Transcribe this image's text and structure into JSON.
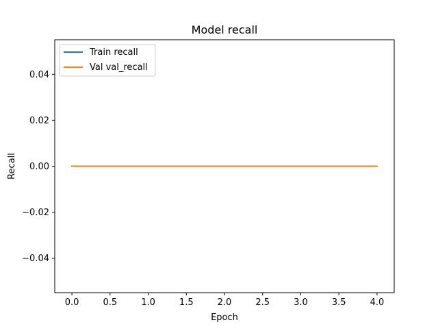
{
  "chart_data": {
    "type": "line",
    "title": "Model recall",
    "xlabel": "Epoch",
    "ylabel": "Recall",
    "xlim": [
      -0.225,
      4.225
    ],
    "ylim": [
      -0.055,
      0.055
    ],
    "x_ticks": [
      0.0,
      0.5,
      1.0,
      1.5,
      2.0,
      2.5,
      3.0,
      3.5,
      4.0
    ],
    "x_tick_labels": [
      "0.0",
      "0.5",
      "1.0",
      "1.5",
      "2.0",
      "2.5",
      "3.0",
      "3.5",
      "4.0"
    ],
    "y_ticks": [
      -0.04,
      -0.02,
      0.0,
      0.02,
      0.04
    ],
    "y_tick_labels": [
      "−0.04",
      "−0.02",
      "0.00",
      "0.02",
      "0.04"
    ],
    "grid": false,
    "legend_position": "top-left",
    "series": [
      {
        "name": "Train recall",
        "color": "#1f77b4",
        "x": [
          0,
          1,
          2,
          3,
          4
        ],
        "values": [
          0,
          0,
          0,
          0,
          0
        ]
      },
      {
        "name": "Val val_recall",
        "color": "#ff7f0e",
        "x": [
          0,
          1,
          2,
          3,
          4
        ],
        "values": [
          0,
          0,
          0,
          0,
          0
        ]
      }
    ]
  }
}
